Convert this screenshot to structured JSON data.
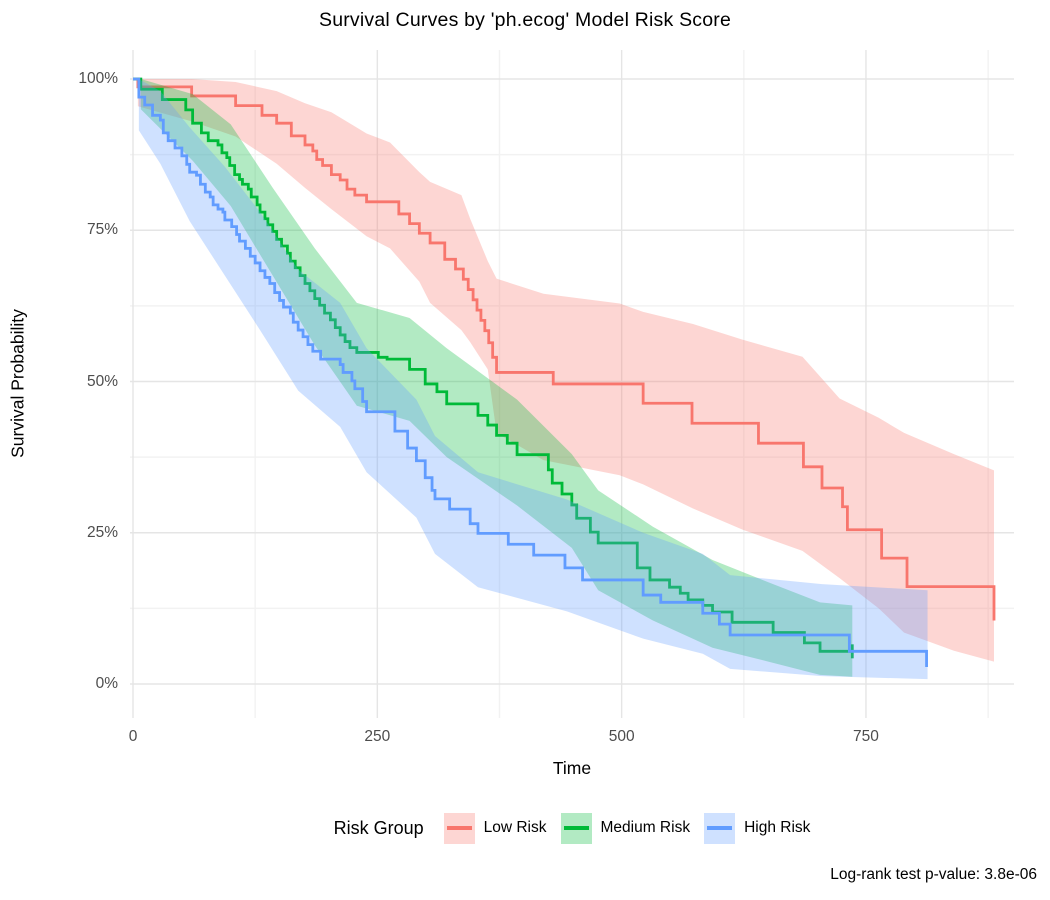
{
  "title": "Survival Curves by 'ph.ecog' Model Risk Score",
  "caption": "Log-rank test p-value: 3.8e-06",
  "axis": {
    "x": {
      "label": "Time",
      "tick_values": [
        0,
        250,
        500,
        750
      ],
      "tick_labels": [
        "0",
        "250",
        "500",
        "750"
      ],
      "minor_ticks": [
        125,
        375,
        625,
        875
      ],
      "range": [
        0,
        901
      ]
    },
    "y": {
      "label": "Survival Probability",
      "tick_values": [
        100,
        75,
        50,
        25,
        0
      ],
      "tick_labels": [
        "100%",
        "75%",
        "50%",
        "25%",
        "0%"
      ],
      "minor_ticks": [
        87.5,
        62.5,
        37.5,
        12.5
      ],
      "range": [
        0,
        100
      ]
    }
  },
  "legend": {
    "title": "Risk Group",
    "items": [
      {
        "label": "Low Risk",
        "color": "#F8766D"
      },
      {
        "label": "Medium Risk",
        "color": "#00BA38"
      },
      {
        "label": "High Risk",
        "color": "#619CFF"
      }
    ]
  },
  "colors": {
    "grid_major": "#E5E5E5",
    "grid_minor": "#F2F2F2",
    "axis_text": "#4d4d4d",
    "ribbon_opacity": 0.3
  },
  "chart_data": {
    "type": "line",
    "subtype": "kaplan-meier-step",
    "title": "Survival Curves by 'ph.ecog' Model Risk Score",
    "xlabel": "Time",
    "ylabel": "Survival Probability",
    "xlim": [
      0,
      900
    ],
    "ylim": [
      0,
      100
    ],
    "grid": true,
    "legend_position": "bottom",
    "series": [
      {
        "name": "Low Risk",
        "color": "#F8766D",
        "steps": [
          [
            0,
            100
          ],
          [
            5,
            98.7
          ],
          [
            60,
            97.2
          ],
          [
            105,
            95.6
          ],
          [
            132,
            94.0
          ],
          [
            147,
            92.7
          ],
          [
            162,
            90.6
          ],
          [
            176,
            89.1
          ],
          [
            184,
            88.1
          ],
          [
            188,
            86.7
          ],
          [
            194,
            85.7
          ],
          [
            203,
            84.2
          ],
          [
            212,
            83.3
          ],
          [
            219,
            81.8
          ],
          [
            227,
            80.8
          ],
          [
            239,
            79.7
          ],
          [
            272,
            77.7
          ],
          [
            283,
            76.1
          ],
          [
            293,
            74.5
          ],
          [
            304,
            72.9
          ],
          [
            319,
            70.2
          ],
          [
            330,
            68.6
          ],
          [
            338,
            66.9
          ],
          [
            343,
            65.2
          ],
          [
            348,
            63.5
          ],
          [
            352,
            61.8
          ],
          [
            356,
            60.1
          ],
          [
            360,
            58.4
          ],
          [
            364,
            56.4
          ],
          [
            368,
            54.0
          ],
          [
            372,
            51.5
          ],
          [
            430,
            49.6
          ],
          [
            522,
            46.4
          ],
          [
            572,
            43.1
          ],
          [
            640,
            39.8
          ],
          [
            686,
            35.9
          ],
          [
            705,
            32.4
          ],
          [
            726,
            29.3
          ],
          [
            731,
            25.5
          ],
          [
            766,
            20.8
          ],
          [
            792,
            16.1
          ],
          [
            881,
            10.5
          ]
        ],
        "ci": [
          [
            5,
            95.5,
            100
          ],
          [
            60,
            93,
            100
          ],
          [
            105,
            90.5,
            99.5
          ],
          [
            147,
            86,
            98
          ],
          [
            176,
            82,
            96
          ],
          [
            203,
            78.5,
            94.5
          ],
          [
            239,
            74,
            91
          ],
          [
            263,
            72,
            89.5
          ],
          [
            293,
            66.5,
            84.6
          ],
          [
            304,
            63,
            83
          ],
          [
            336,
            58.5,
            80.8
          ],
          [
            345,
            56.5,
            76.9
          ],
          [
            363,
            52,
            69.9
          ],
          [
            372,
            41.5,
            67
          ],
          [
            420,
            37,
            64.5
          ],
          [
            498,
            34.5,
            62.9
          ],
          [
            522,
            33,
            61.5
          ],
          [
            573,
            29,
            59.5
          ],
          [
            624,
            25.5,
            56.9
          ],
          [
            685,
            22,
            54.1
          ],
          [
            723,
            17.5,
            47.2
          ],
          [
            763,
            12.5,
            44
          ],
          [
            789,
            8.5,
            41.5
          ],
          [
            840,
            5.5,
            38
          ],
          [
            881,
            3.7,
            35.3
          ]
        ],
        "censor_ticks": []
      },
      {
        "name": "Medium Risk",
        "color": "#00BA38",
        "steps": [
          [
            0,
            100
          ],
          [
            8,
            98.3
          ],
          [
            30,
            96.6
          ],
          [
            54,
            94.9
          ],
          [
            61,
            92.7
          ],
          [
            70,
            91.1
          ],
          [
            77,
            89.8
          ],
          [
            87,
            89.1
          ],
          [
            91,
            87.8
          ],
          [
            96,
            87.0
          ],
          [
            99,
            85.7
          ],
          [
            104,
            84.2
          ],
          [
            109,
            83.4
          ],
          [
            112,
            82.6
          ],
          [
            118,
            81.8
          ],
          [
            121,
            80.5
          ],
          [
            127,
            79.2
          ],
          [
            130,
            78.0
          ],
          [
            135,
            76.9
          ],
          [
            138,
            75.9
          ],
          [
            143,
            74.8
          ],
          [
            147,
            73.5
          ],
          [
            152,
            72.4
          ],
          [
            158,
            71.2
          ],
          [
            161,
            69.9
          ],
          [
            166,
            68.8
          ],
          [
            171,
            67.5
          ],
          [
            176,
            66.2
          ],
          [
            181,
            65.0
          ],
          [
            186,
            63.7
          ],
          [
            191,
            62.6
          ],
          [
            196,
            61.3
          ],
          [
            202,
            60.2
          ],
          [
            207,
            58.9
          ],
          [
            212,
            57.7
          ],
          [
            217,
            56.6
          ],
          [
            222,
            55.6
          ],
          [
            229,
            54.8
          ],
          [
            251,
            54.0
          ],
          [
            260,
            53.7
          ],
          [
            283,
            52.0
          ],
          [
            299,
            49.6
          ],
          [
            311,
            48.3
          ],
          [
            321,
            46.3
          ],
          [
            353,
            44.4
          ],
          [
            363,
            42.8
          ],
          [
            372,
            41.1
          ],
          [
            383,
            39.8
          ],
          [
            393,
            37.9
          ],
          [
            425,
            35.4
          ],
          [
            429,
            33.2
          ],
          [
            439,
            31.4
          ],
          [
            449,
            29.6
          ],
          [
            454,
            27.4
          ],
          [
            468,
            25.1
          ],
          [
            476,
            23.3
          ],
          [
            516,
            19.2
          ],
          [
            529,
            17.2
          ],
          [
            549,
            16.0
          ],
          [
            560,
            15.0
          ],
          [
            568,
            13.9
          ],
          [
            583,
            13.0
          ],
          [
            593,
            11.9
          ],
          [
            613,
            10.2
          ],
          [
            655,
            8.5
          ],
          [
            687,
            6.8
          ],
          [
            703,
            5.4
          ],
          [
            736,
            5.4
          ]
        ],
        "ci": [
          [
            8,
            95,
            100
          ],
          [
            61,
            86.5,
            97.5
          ],
          [
            100,
            79,
            92.5
          ],
          [
            143,
            67.5,
            82
          ],
          [
            186,
            56,
            72
          ],
          [
            229,
            46,
            63
          ],
          [
            283,
            43.5,
            60.5
          ],
          [
            321,
            37.5,
            55.5
          ],
          [
            393,
            29.5,
            47
          ],
          [
            449,
            22.5,
            38
          ],
          [
            476,
            15.5,
            32
          ],
          [
            532,
            10.5,
            26
          ],
          [
            593,
            6,
            20.5
          ],
          [
            655,
            3.5,
            16.5
          ],
          [
            703,
            1.5,
            13.5
          ],
          [
            736,
            1.2,
            13
          ]
        ],
        "censor_ticks": [
          [
            736,
            5.4
          ]
        ]
      },
      {
        "name": "High Risk",
        "color": "#619CFF",
        "steps": [
          [
            0,
            100
          ],
          [
            6,
            97.0
          ],
          [
            12,
            95.7
          ],
          [
            20,
            94.0
          ],
          [
            28,
            93.2
          ],
          [
            31,
            91.1
          ],
          [
            36,
            89.8
          ],
          [
            43,
            88.6
          ],
          [
            50,
            87.3
          ],
          [
            55,
            85.9
          ],
          [
            58,
            84.6
          ],
          [
            65,
            84.1
          ],
          [
            69,
            82.6
          ],
          [
            74,
            81.3
          ],
          [
            79,
            80.5
          ],
          [
            82,
            79.2
          ],
          [
            87,
            78.5
          ],
          [
            92,
            78.0
          ],
          [
            94,
            76.7
          ],
          [
            101,
            75.6
          ],
          [
            106,
            74.3
          ],
          [
            109,
            73.2
          ],
          [
            115,
            72.0
          ],
          [
            120,
            70.7
          ],
          [
            125,
            69.6
          ],
          [
            130,
            68.3
          ],
          [
            135,
            67.2
          ],
          [
            140,
            66.2
          ],
          [
            145,
            64.7
          ],
          [
            150,
            63.4
          ],
          [
            154,
            62.3
          ],
          [
            161,
            61.3
          ],
          [
            164,
            59.8
          ],
          [
            169,
            58.5
          ],
          [
            174,
            57.4
          ],
          [
            179,
            56.1
          ],
          [
            184,
            55.0
          ],
          [
            192,
            53.7
          ],
          [
            212,
            52.8
          ],
          [
            215,
            51.5
          ],
          [
            224,
            50.1
          ],
          [
            227,
            48.8
          ],
          [
            235,
            46.7
          ],
          [
            239,
            45.0
          ],
          [
            268,
            41.8
          ],
          [
            281,
            39.0
          ],
          [
            290,
            36.9
          ],
          [
            299,
            34.1
          ],
          [
            306,
            32.0
          ],
          [
            309,
            30.6
          ],
          [
            324,
            28.9
          ],
          [
            345,
            26.5
          ],
          [
            353,
            24.9
          ],
          [
            384,
            23.1
          ],
          [
            410,
            21.3
          ],
          [
            442,
            19.2
          ],
          [
            460,
            17.2
          ],
          [
            522,
            14.7
          ],
          [
            540,
            13.5
          ],
          [
            583,
            11.7
          ],
          [
            600,
            9.9
          ],
          [
            611,
            8.1
          ],
          [
            733,
            5.4
          ],
          [
            810,
            5.4
          ],
          [
            812,
            2.8
          ]
        ],
        "ci": [
          [
            6,
            91.5,
            100
          ],
          [
            28,
            86,
            98
          ],
          [
            58,
            76.5,
            92
          ],
          [
            94,
            67.5,
            85.5
          ],
          [
            130,
            58.5,
            78
          ],
          [
            169,
            48.5,
            68.5
          ],
          [
            212,
            42.5,
            63
          ],
          [
            239,
            35,
            55.5
          ],
          [
            290,
            27.5,
            47
          ],
          [
            309,
            21.5,
            41
          ],
          [
            353,
            16,
            35
          ],
          [
            444,
            12,
            30.5
          ],
          [
            522,
            7.5,
            25
          ],
          [
            583,
            5,
            21.5
          ],
          [
            611,
            2.5,
            18
          ],
          [
            705,
            1.3,
            16.5
          ],
          [
            813,
            0.8,
            15.5
          ]
        ],
        "censor_ticks": []
      }
    ]
  }
}
